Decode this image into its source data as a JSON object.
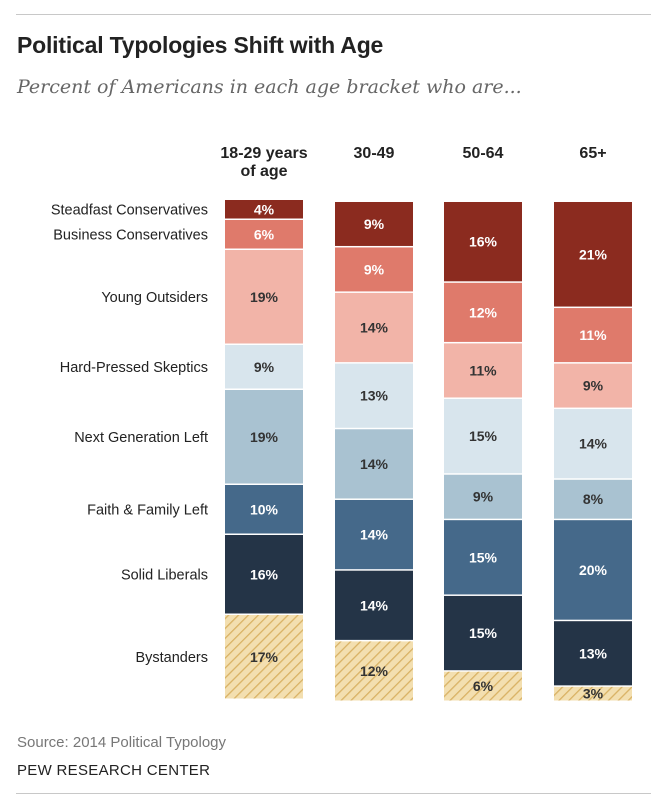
{
  "header": {
    "title": "Political Typologies Shift with Age",
    "subtitle": "Percent of Americans in each age bracket who are..."
  },
  "footer": {
    "source": "Source: 2014 Political Typology",
    "org": "PEW RESEARCH CENTER"
  },
  "chart_data": {
    "type": "bar",
    "stacked": true,
    "unit": "%",
    "categories": [
      [
        "18-29 years",
        "of age"
      ],
      [
        "30-49"
      ],
      [
        "50-64"
      ],
      [
        "65+"
      ]
    ],
    "series": [
      {
        "name": "Steadfast Conservatives",
        "values": [
          4,
          9,
          16,
          21
        ],
        "labels": [
          "4%",
          "9%",
          "16%",
          "21%"
        ],
        "color": "#8b2b1f",
        "text_color": "#ffffff"
      },
      {
        "name": "Business Conservatives",
        "values": [
          6,
          9,
          12,
          11
        ],
        "labels": [
          "6%",
          "9%",
          "12%",
          "11%"
        ],
        "color": "#df7a6b",
        "text_color": "#ffffff"
      },
      {
        "name": "Young Outsiders",
        "values": [
          19,
          14,
          11,
          9
        ],
        "labels": [
          "19%",
          "14%",
          "11%",
          "9%"
        ],
        "color": "#f2b4a8",
        "text_color": "#333333"
      },
      {
        "name": "Hard-Pressed Skeptics",
        "values": [
          9,
          13,
          15,
          14
        ],
        "labels": [
          "9%",
          "13%",
          "15%",
          "14%"
        ],
        "color": "#d8e5ed",
        "text_color": "#333333"
      },
      {
        "name": "Next Generation Left",
        "values": [
          19,
          14,
          9,
          8
        ],
        "labels": [
          "19%",
          "14%",
          "9%",
          "8%"
        ],
        "color": "#a9c2d1",
        "text_color": "#333333"
      },
      {
        "name": "Faith & Family Left",
        "values": [
          10,
          14,
          15,
          20
        ],
        "labels": [
          "10%",
          "14%",
          "15%",
          "20%"
        ],
        "color": "#45698a",
        "text_color": "#ffffff"
      },
      {
        "name": "Solid Liberals",
        "values": [
          16,
          14,
          15,
          13
        ],
        "labels": [
          "16%",
          "14%",
          "15%",
          "13%"
        ],
        "color": "#243447",
        "text_color": "#ffffff"
      },
      {
        "name": "Bystanders",
        "values": [
          17,
          12,
          6,
          3
        ],
        "labels": [
          "17%",
          "12%",
          "6%",
          "3%"
        ],
        "color": "#f3dfb0",
        "pattern": "diagonal-hatch",
        "hatch_color": "#d9b264",
        "text_color": "#333333"
      }
    ]
  }
}
